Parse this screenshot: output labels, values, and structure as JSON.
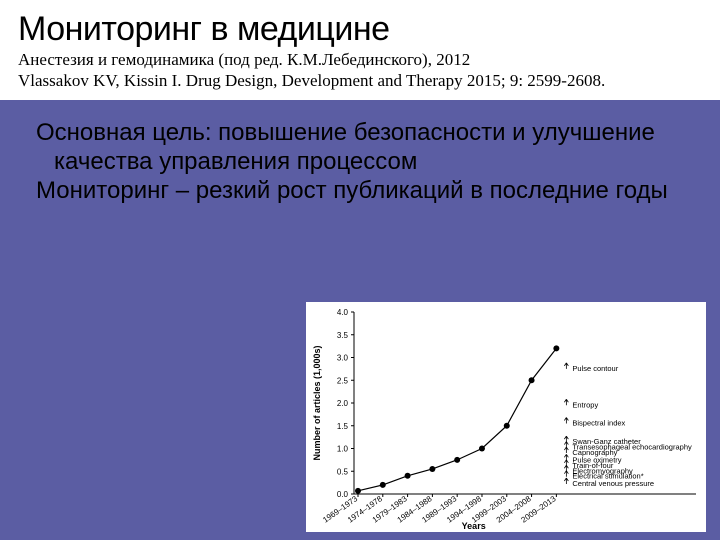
{
  "title_block": {
    "title": "Мониторинг в медицине",
    "subtitle_1": "Анестезия и гемодинамика (под ред. К.М.Лебединского), 2012",
    "subtitle_2": "Vlassakov KV, Kissin I. Drug Design, Development and Therapy 2015; 9: 2599-2608."
  },
  "body": {
    "para_1": "Основная цель: повышение безопасности и улучшение качества управления процессом",
    "para_2": "Мониторинг – резкий рост публикаций в последние годы"
  },
  "chart": {
    "type": "line",
    "y_label": "Number of articles (1,000s)",
    "x_label": "Years",
    "background_color": "#ffffff",
    "axis_color": "#000000",
    "line_color": "#000000",
    "marker_color": "#000000",
    "marker_size": 3,
    "line_width": 1.2,
    "ylim": [
      0,
      4.0
    ],
    "ytick_step": 0.5,
    "y_ticks": [
      0,
      0.5,
      1.0,
      1.5,
      2.0,
      2.5,
      3.0,
      3.5,
      4.0
    ],
    "x_categories": [
      "1969–1973",
      "1974–1978",
      "1979–1983",
      "1984–1988",
      "1989–1993",
      "1994–1998",
      "1999–2003",
      "2004–2008",
      "2009–2013"
    ],
    "values": [
      0.07,
      0.2,
      0.4,
      0.55,
      0.75,
      1.0,
      1.5,
      2.5,
      3.2
    ],
    "annotations": [
      {
        "label": "Central venous pressure",
        "y_val": 0.22,
        "x_offset": 26
      },
      {
        "label": "Electrical stimulation*",
        "y_val": 0.38,
        "x_offset": 26
      },
      {
        "label": "Electromyography",
        "y_val": 0.5,
        "x_offset": 26
      },
      {
        "label": "Train-of-four",
        "y_val": 0.62,
        "x_offset": 26
      },
      {
        "label": "Pulse oximetry",
        "y_val": 0.74,
        "x_offset": 26
      },
      {
        "label": "Capnography",
        "y_val": 0.9,
        "x_offset": 26
      },
      {
        "label": "Transesophageal echocardiography",
        "y_val": 1.02,
        "x_offset": 26
      },
      {
        "label": "Swan-Ganz catheter",
        "y_val": 1.14,
        "x_offset": 26
      },
      {
        "label": "Bispectral index",
        "y_val": 1.55,
        "x_offset": 26
      },
      {
        "label": "Entropy",
        "y_val": 1.95,
        "x_offset": 26
      },
      {
        "label": "Pulse contour",
        "y_val": 2.75,
        "x_offset": 26
      }
    ]
  }
}
